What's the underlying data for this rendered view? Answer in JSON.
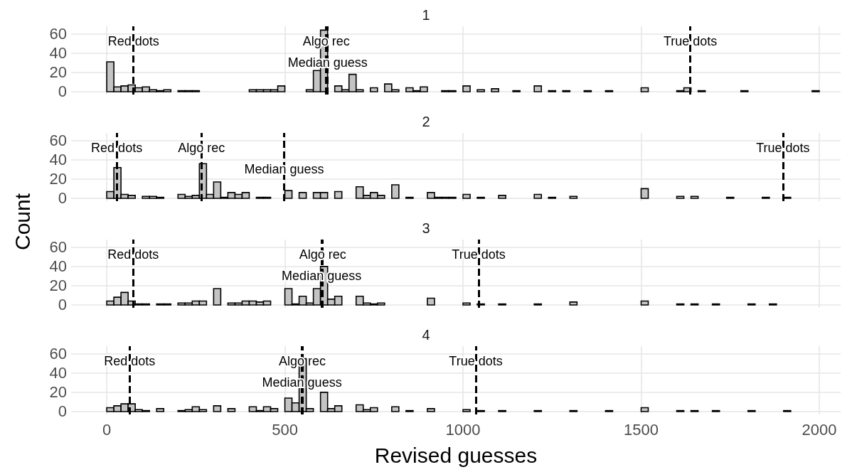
{
  "chart_data": [
    {
      "type": "histogram",
      "title": "1",
      "color": "#c4c4c4",
      "bins": [
        0,
        20,
        40,
        60,
        80,
        100,
        120,
        140,
        160,
        180,
        200,
        220,
        240,
        260,
        280,
        300,
        320,
        340,
        360,
        380,
        400,
        420,
        440,
        460,
        480,
        500,
        520,
        540,
        560,
        580,
        600,
        620,
        640,
        660,
        680,
        700,
        720,
        740,
        760,
        780,
        800,
        820,
        840,
        860,
        880,
        900,
        920,
        940,
        960,
        980,
        1000,
        1020,
        1040,
        1060,
        1080,
        1100,
        1120,
        1140,
        1160,
        1180,
        1200,
        1220,
        1240,
        1260,
        1280,
        1300,
        1320,
        1340,
        1360,
        1380,
        1400,
        1420,
        1440,
        1460,
        1480,
        1500,
        1520,
        1540,
        1560,
        1580,
        1600,
        1620,
        1640,
        1660,
        1680,
        1700,
        1720,
        1740,
        1760,
        1780,
        1800,
        1820,
        1840,
        1860,
        1880,
        1900,
        1920,
        1940,
        1960,
        1980,
        2000
      ],
      "values": [
        31,
        5,
        6,
        7,
        4,
        5,
        2,
        1,
        2,
        0,
        1,
        1,
        1,
        0,
        0,
        0,
        0,
        0,
        0,
        0,
        2,
        2,
        2,
        2,
        6,
        0,
        0,
        0,
        2,
        22,
        64,
        0,
        6,
        2,
        18,
        2,
        0,
        4,
        0,
        8,
        2,
        0,
        4,
        1,
        5,
        0,
        0,
        1,
        1,
        0,
        6,
        0,
        2,
        0,
        3,
        0,
        0,
        1,
        0,
        0,
        6,
        0,
        1,
        0,
        1,
        0,
        0,
        1,
        0,
        0,
        1,
        0,
        0,
        0,
        0,
        4,
        0,
        0,
        0,
        0,
        1,
        4,
        0,
        1,
        0,
        0,
        0,
        0,
        0,
        1,
        0,
        0,
        0,
        0,
        0,
        0,
        0,
        0,
        0,
        1
      ],
      "xlim": [
        -100,
        2060
      ],
      "xticks": [
        0,
        500,
        1000,
        1500,
        2000
      ],
      "ylim": [
        -3,
        68
      ],
      "yticks": [
        0,
        20,
        40,
        60
      ],
      "grid": true,
      "tick_labels": "y",
      "ref_lines": [
        {
          "axis": "x",
          "value": 75,
          "label": "Red dots",
          "line_style": "dashed"
        },
        {
          "axis": "x",
          "value": 616,
          "label": "Algo rec",
          "line_style": "dashed"
        },
        {
          "axis": "x",
          "value": 620,
          "label": "Median guess",
          "line_style": "dashed"
        },
        {
          "axis": "x",
          "value": 1638,
          "label": "True dots",
          "line_style": "dashed"
        }
      ]
    },
    {
      "type": "histogram",
      "title": "2",
      "color": "#c4c4c4",
      "ylabel": "Count",
      "bins": [
        0,
        20,
        40,
        60,
        80,
        100,
        120,
        140,
        160,
        180,
        200,
        220,
        240,
        260,
        280,
        300,
        320,
        340,
        360,
        380,
        400,
        420,
        440,
        460,
        480,
        500,
        520,
        540,
        560,
        580,
        600,
        620,
        640,
        660,
        680,
        700,
        720,
        740,
        760,
        780,
        800,
        820,
        840,
        860,
        880,
        900,
        920,
        940,
        960,
        980,
        1000,
        1020,
        1040,
        1060,
        1080,
        1100,
        1120,
        1140,
        1160,
        1180,
        1200,
        1220,
        1240,
        1260,
        1280,
        1300,
        1320,
        1340,
        1360,
        1380,
        1400,
        1420,
        1440,
        1460,
        1480,
        1500,
        1520,
        1540,
        1560,
        1580,
        1600,
        1620,
        1640,
        1660,
        1680,
        1700,
        1720,
        1740,
        1760,
        1780,
        1800,
        1820,
        1840,
        1860,
        1880,
        1900,
        1920,
        1940,
        1960,
        1980,
        2000
      ],
      "values": [
        7,
        32,
        4,
        3,
        0,
        2,
        2,
        1,
        0,
        0,
        4,
        2,
        3,
        36,
        4,
        17,
        1,
        6,
        4,
        6,
        0,
        1,
        1,
        0,
        0,
        8,
        0,
        6,
        0,
        6,
        6,
        0,
        7,
        0,
        0,
        12,
        3,
        6,
        3,
        0,
        14,
        0,
        1,
        0,
        0,
        6,
        1,
        1,
        1,
        0,
        4,
        0,
        1,
        0,
        0,
        3,
        0,
        0,
        0,
        0,
        4,
        0,
        1,
        0,
        0,
        2,
        0,
        0,
        0,
        0,
        0,
        0,
        0,
        0,
        0,
        10,
        0,
        0,
        0,
        0,
        2,
        0,
        2,
        0,
        0,
        0,
        0,
        1,
        0,
        0,
        0,
        0,
        1,
        0,
        0,
        1,
        0,
        0,
        0,
        0
      ],
      "xlim": [
        -100,
        2060
      ],
      "xticks": [
        0,
        500,
        1000,
        1500,
        2000
      ],
      "ylim": [
        -3,
        68
      ],
      "yticks": [
        0,
        20,
        40,
        60
      ],
      "grid": true,
      "tick_labels": "y",
      "ref_lines": [
        {
          "axis": "x",
          "value": 28,
          "label": "Red dots",
          "line_style": "dashed"
        },
        {
          "axis": "x",
          "value": 266,
          "label": "Algo rec",
          "line_style": "dashed"
        },
        {
          "axis": "x",
          "value": 498,
          "label": "Median guess",
          "line_style": "dashed"
        },
        {
          "axis": "x",
          "value": 1898,
          "label": "True dots",
          "line_style": "dashed"
        }
      ]
    },
    {
      "type": "histogram",
      "title": "3",
      "color": "#c4c4c4",
      "bins": [
        0,
        20,
        40,
        60,
        80,
        100,
        120,
        140,
        160,
        180,
        200,
        220,
        240,
        260,
        280,
        300,
        320,
        340,
        360,
        380,
        400,
        420,
        440,
        460,
        480,
        500,
        520,
        540,
        560,
        580,
        600,
        620,
        640,
        660,
        680,
        700,
        720,
        740,
        760,
        780,
        800,
        820,
        840,
        860,
        880,
        900,
        920,
        940,
        960,
        980,
        1000,
        1020,
        1040,
        1060,
        1080,
        1100,
        1120,
        1140,
        1160,
        1180,
        1200,
        1220,
        1240,
        1260,
        1280,
        1300,
        1320,
        1340,
        1360,
        1380,
        1400,
        1420,
        1440,
        1460,
        1480,
        1500,
        1520,
        1540,
        1560,
        1580,
        1600,
        1620,
        1640,
        1660,
        1680,
        1700,
        1720,
        1740,
        1760,
        1780,
        1800,
        1820,
        1840,
        1860,
        1880,
        1900,
        1920,
        1940,
        1960,
        1980,
        2000
      ],
      "values": [
        4,
        8,
        13,
        4,
        1,
        1,
        0,
        1,
        1,
        0,
        2,
        2,
        4,
        4,
        0,
        17,
        0,
        2,
        2,
        4,
        4,
        3,
        4,
        0,
        0,
        17,
        1,
        9,
        2,
        17,
        40,
        6,
        9,
        0,
        0,
        9,
        2,
        1,
        2,
        0,
        0,
        0,
        0,
        0,
        0,
        7,
        0,
        0,
        0,
        0,
        2,
        0,
        1,
        0,
        0,
        1,
        0,
        0,
        0,
        0,
        1,
        0,
        0,
        0,
        0,
        3,
        0,
        0,
        0,
        0,
        0,
        0,
        0,
        0,
        0,
        4,
        0,
        0,
        0,
        0,
        1,
        0,
        1,
        0,
        0,
        1,
        0,
        0,
        0,
        0,
        1,
        0,
        0,
        1,
        0,
        0,
        0,
        0,
        0,
        0
      ],
      "xlim": [
        -100,
        2060
      ],
      "xticks": [
        0,
        500,
        1000,
        1500,
        2000
      ],
      "ylim": [
        -3,
        68
      ],
      "yticks": [
        0,
        20,
        40,
        60
      ],
      "grid": true,
      "tick_labels": "y",
      "ref_lines": [
        {
          "axis": "x",
          "value": 74,
          "label": "Red dots",
          "line_style": "dashed"
        },
        {
          "axis": "x",
          "value": 606,
          "label": "Algo rec",
          "line_style": "dashed"
        },
        {
          "axis": "x",
          "value": 603,
          "label": "Median guess",
          "line_style": "dashed"
        },
        {
          "axis": "x",
          "value": 1044,
          "label": "True dots",
          "line_style": "dashed"
        }
      ]
    },
    {
      "type": "histogram",
      "title": "4",
      "color": "#c4c4c4",
      "xlabel": "Revised guesses",
      "bins": [
        0,
        20,
        40,
        60,
        80,
        100,
        120,
        140,
        160,
        180,
        200,
        220,
        240,
        260,
        280,
        300,
        320,
        340,
        360,
        380,
        400,
        420,
        440,
        460,
        480,
        500,
        520,
        540,
        560,
        580,
        600,
        620,
        640,
        660,
        680,
        700,
        720,
        740,
        760,
        780,
        800,
        820,
        840,
        860,
        880,
        900,
        920,
        940,
        960,
        980,
        1000,
        1020,
        1040,
        1060,
        1080,
        1100,
        1120,
        1140,
        1160,
        1180,
        1200,
        1220,
        1240,
        1260,
        1280,
        1300,
        1320,
        1340,
        1360,
        1380,
        1400,
        1420,
        1440,
        1460,
        1480,
        1500,
        1520,
        1540,
        1560,
        1580,
        1600,
        1620,
        1640,
        1660,
        1680,
        1700,
        1720,
        1740,
        1760,
        1780,
        1800,
        1820,
        1840,
        1860,
        1880,
        1900,
        1920,
        1940,
        1960,
        1980,
        2000
      ],
      "values": [
        4,
        6,
        8,
        8,
        2,
        1,
        0,
        3,
        0,
        0,
        1,
        2,
        5,
        2,
        0,
        6,
        0,
        3,
        0,
        0,
        5,
        1,
        5,
        3,
        0,
        14,
        9,
        55,
        3,
        0,
        20,
        3,
        6,
        0,
        0,
        7,
        2,
        4,
        0,
        0,
        5,
        0,
        1,
        0,
        0,
        3,
        0,
        0,
        0,
        0,
        2,
        0,
        1,
        0,
        0,
        1,
        0,
        0,
        0,
        0,
        1,
        0,
        0,
        0,
        0,
        1,
        0,
        0,
        0,
        0,
        1,
        0,
        0,
        0,
        0,
        4,
        0,
        0,
        0,
        0,
        1,
        0,
        1,
        0,
        0,
        1,
        0,
        0,
        0,
        0,
        1,
        0,
        0,
        0,
        0,
        1,
        0,
        0,
        0,
        0
      ],
      "xlim": [
        -100,
        2060
      ],
      "xticks": [
        0,
        500,
        1000,
        1500,
        2000
      ],
      "ylim": [
        -3,
        68
      ],
      "yticks": [
        0,
        20,
        40,
        60
      ],
      "grid": true,
      "ref_lines": [
        {
          "axis": "x",
          "value": 64,
          "label": "Red dots",
          "line_style": "dashed"
        },
        {
          "axis": "x",
          "value": 549,
          "label": "Algo rec",
          "line_style": "dashed"
        },
        {
          "axis": "x",
          "value": 548,
          "label": "Median guess",
          "line_style": "dashed"
        },
        {
          "axis": "x",
          "value": 1036,
          "label": "True dots",
          "line_style": "dashed"
        }
      ]
    }
  ]
}
